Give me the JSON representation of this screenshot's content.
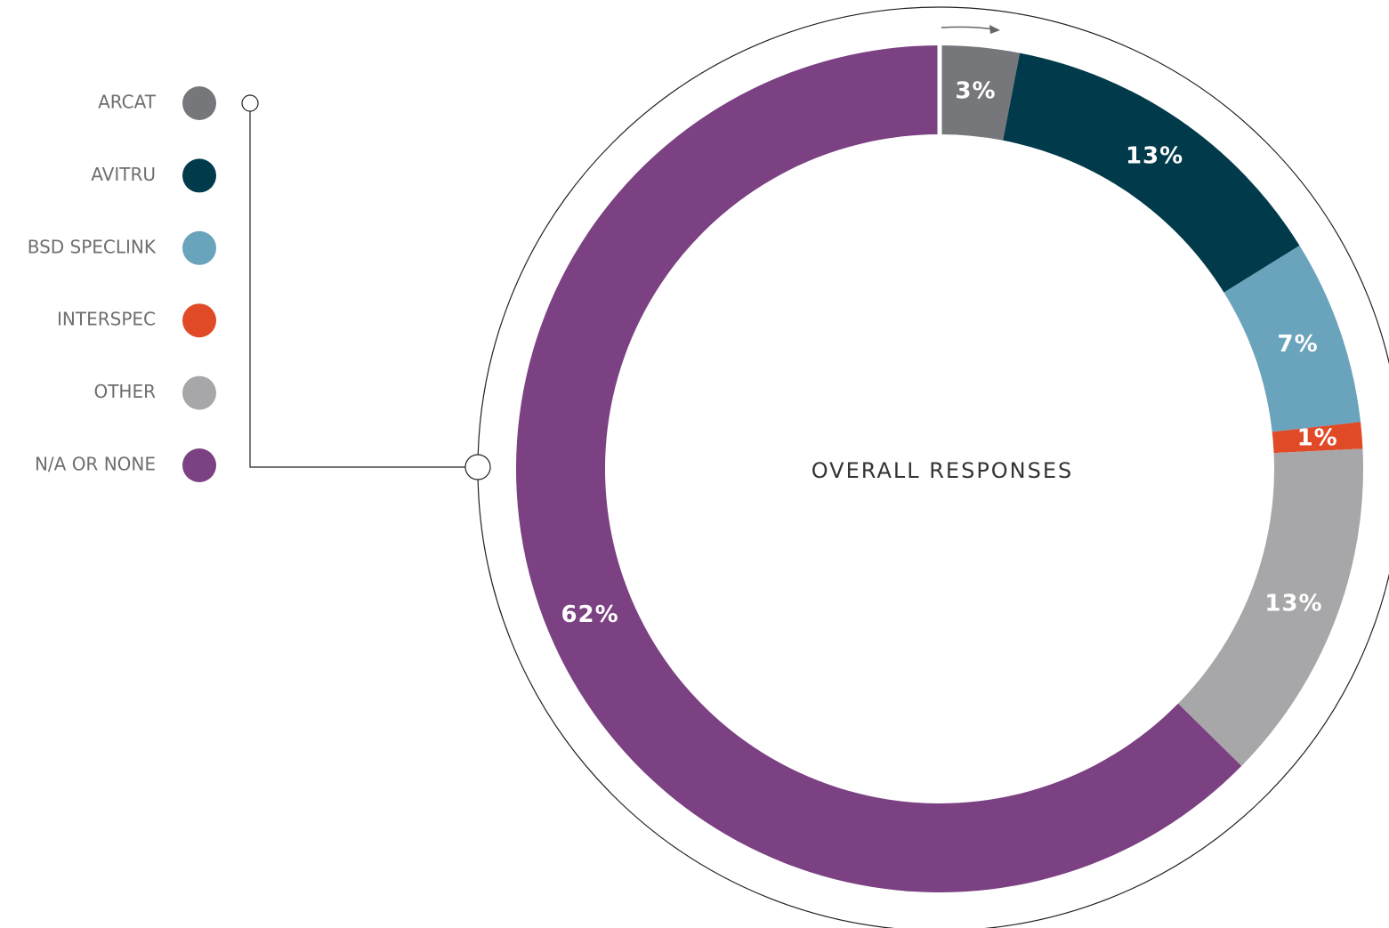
{
  "chart_data": {
    "type": "donut",
    "title": "OVERALL RESPONSES",
    "categories": [
      "ARCAT",
      "AVITRU",
      "BSD SPECLINK",
      "INTERSPEC",
      "OTHER",
      "N/A OR NONE"
    ],
    "values": [
      3,
      13,
      7,
      1,
      13,
      62
    ],
    "value_labels": [
      "3%",
      "13%",
      "7%",
      "1%",
      "13%",
      "62%"
    ],
    "colors": [
      "#76777b",
      "#003a4b",
      "#6aa3bc",
      "#e04a26",
      "#a7a7a9",
      "#7b4182"
    ],
    "legend": "left"
  }
}
